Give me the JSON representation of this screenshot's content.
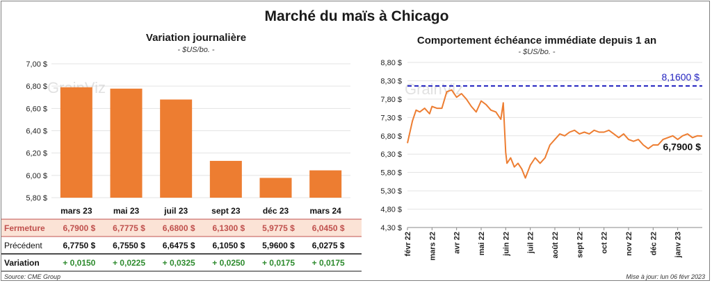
{
  "title": "Marché du maïs à Chicago",
  "source": "Source: CME Group",
  "updated": "Mise à jour: lun 06 févr 2023",
  "watermark": "GrainViz",
  "colors": {
    "bar": "#ed7d31",
    "line": "#ed7d31",
    "ref": "#1f1fbf",
    "up": "#2e8b2e",
    "fermeture_bg": "#fbe3d6",
    "fermeture_text": "#c0504d"
  },
  "chart_data": [
    {
      "type": "bar",
      "title": "Variation journalière",
      "subtitle": "- $US/bo. -",
      "categories": [
        "mars 23",
        "mai 23",
        "juil 23",
        "sept 23",
        "déc 23",
        "mars 24"
      ],
      "values": [
        6.79,
        6.7775,
        6.68,
        6.13,
        5.9775,
        6.045
      ],
      "ylim": [
        5.8,
        7.0
      ],
      "yticks": [
        5.8,
        6.0,
        6.2,
        6.4,
        6.6,
        6.8,
        7.0
      ],
      "ytick_labels": [
        "5,80 $",
        "6,00 $",
        "6,20 $",
        "6,40 $",
        "6,60 $",
        "6,80 $",
        "7,00 $"
      ],
      "grid": true,
      "table": {
        "rows": [
          {
            "label": "Fermeture",
            "values": [
              "6,7900",
              "6,7775",
              "6,6800",
              "6,1300",
              "5,9775",
              "6,0450"
            ],
            "suffix": "$"
          },
          {
            "label": "Précédent",
            "values": [
              "6,7750",
              "6,7550",
              "6,6475",
              "6,1050",
              "5,9600",
              "6,0275"
            ],
            "suffix": "$"
          },
          {
            "label": "Variation",
            "values": [
              "+ 0,0150",
              "+ 0,0225",
              "+ 0,0325",
              "+ 0,0250",
              "+ 0,0175",
              "+ 0,0175"
            ],
            "suffix": ""
          }
        ]
      }
    },
    {
      "type": "line",
      "title": "Comportement  échéance immédiate depuis 1 an",
      "subtitle": "- $US/bo. -",
      "x_labels": [
        "févr 22",
        "mars 22",
        "avr 22",
        "mai 22",
        "juin 22",
        "juil 22",
        "août 22",
        "sept 22",
        "oct 22",
        "nov 22",
        "déc 22",
        "janv 23"
      ],
      "ylim": [
        4.3,
        8.8
      ],
      "yticks": [
        4.3,
        4.8,
        5.3,
        5.8,
        6.3,
        6.8,
        7.3,
        7.8,
        8.3,
        8.8
      ],
      "ytick_labels": [
        "4,30 $",
        "4,80 $",
        "5,30 $",
        "5,80 $",
        "6,30 $",
        "6,80 $",
        "7,30 $",
        "7,80 $",
        "8,30 $",
        "8,80 $"
      ],
      "reference_line": {
        "value": 8.16,
        "label": "8,1600 $"
      },
      "last_label": "6,7900 $",
      "grid": true,
      "series": [
        {
          "x": [
            0,
            0.2,
            0.35,
            0.5,
            0.7,
            0.9,
            1.0,
            1.2,
            1.4,
            1.6,
            1.8,
            2.0,
            2.2,
            2.4,
            2.6,
            2.8,
            3.0,
            3.2,
            3.4,
            3.6,
            3.8,
            3.9,
            4.0,
            4.05,
            4.1,
            4.2,
            4.35,
            4.5,
            4.65,
            4.8,
            5.0,
            5.2,
            5.4,
            5.6,
            5.8,
            6.0,
            6.2,
            6.4,
            6.6,
            6.8,
            7.0,
            7.2,
            7.4,
            7.6,
            7.8,
            8.0,
            8.2,
            8.4,
            8.6,
            8.8,
            9.0,
            9.2,
            9.4,
            9.6,
            9.8,
            10.0,
            10.2,
            10.4,
            10.6,
            10.8,
            11.0,
            11.2,
            11.4,
            11.6,
            11.8,
            12.0
          ],
          "y": [
            6.6,
            7.2,
            7.5,
            7.45,
            7.55,
            7.4,
            7.6,
            7.55,
            7.55,
            8.0,
            8.05,
            7.85,
            7.95,
            7.8,
            7.6,
            7.45,
            7.75,
            7.65,
            7.5,
            7.45,
            7.25,
            7.7,
            6.35,
            6.05,
            6.1,
            6.2,
            5.95,
            6.05,
            5.9,
            5.65,
            6.0,
            6.2,
            6.05,
            6.2,
            6.55,
            6.7,
            6.85,
            6.8,
            6.9,
            6.95,
            6.85,
            6.9,
            6.85,
            6.95,
            6.9,
            6.9,
            6.95,
            6.85,
            6.75,
            6.85,
            6.7,
            6.65,
            6.7,
            6.55,
            6.45,
            6.55,
            6.55,
            6.7,
            6.75,
            6.8,
            6.7,
            6.8,
            6.85,
            6.75,
            6.8,
            6.79
          ]
        }
      ]
    }
  ]
}
